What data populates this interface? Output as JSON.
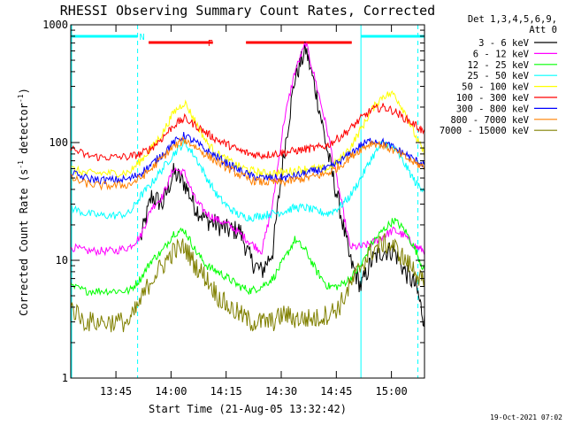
{
  "chart_data": {
    "type": "line",
    "title": "RHESSI Observing Summary Count Rates, Corrected",
    "xlabel": "Start Time (21-Aug-05 13:32:42)",
    "ylabel": "Corrected Count Rate (s",
    "ylabel_sup1": "-1",
    "ylabel_mid": " detector",
    "ylabel_sup2": "-1",
    "ylabel_end": ")",
    "x_unit": "minutes since 13:32:42",
    "xlim": [
      0,
      96.3
    ],
    "ylim": [
      1,
      1000
    ],
    "yscale": "log",
    "x_ticks": [
      {
        "label": "13:45",
        "value": 12.3
      },
      {
        "label": "14:00",
        "value": 27.3
      },
      {
        "label": "14:15",
        "value": 42.3
      },
      {
        "label": "14:30",
        "value": 57.3
      },
      {
        "label": "14:45",
        "value": 72.3
      },
      {
        "label": "15:00",
        "value": 87.3
      }
    ],
    "y_ticks": [
      {
        "label": "1",
        "value": 1
      },
      {
        "label": "10",
        "value": 10
      },
      {
        "label": "100",
        "value": 100
      },
      {
        "label": "1000",
        "value": 1000
      }
    ],
    "legend_header": [
      "Det 1,3,4,5,6,9,",
      "Att 0"
    ],
    "x": [
      0,
      4,
      8,
      12,
      16,
      19,
      22,
      25,
      28,
      31,
      34,
      37,
      40,
      43,
      46,
      49,
      52,
      55,
      58,
      61,
      64,
      67,
      70,
      73,
      76,
      79,
      82,
      85,
      88,
      91,
      94,
      96.3
    ],
    "series": [
      {
        "name": "3 - 6 keV",
        "color": "#000000",
        "values": [
          null,
          null,
          null,
          null,
          null,
          15,
          35,
          30,
          55,
          45,
          28,
          22,
          20,
          18,
          18,
          10,
          8,
          12,
          80,
          350,
          620,
          250,
          80,
          30,
          10,
          6,
          10,
          12,
          12,
          8,
          6,
          3
        ]
      },
      {
        "name": "6 - 12 keV",
        "color": "#ff00ff",
        "values": [
          13,
          12,
          12,
          12,
          13,
          16,
          28,
          35,
          60,
          55,
          32,
          25,
          22,
          20,
          17,
          14,
          12,
          30,
          150,
          400,
          700,
          300,
          120,
          40,
          13,
          13,
          14,
          16,
          18,
          16,
          13,
          12
        ]
      },
      {
        "name": "12 - 25 keV",
        "color": "#00ff00",
        "values": [
          6,
          5.5,
          5.5,
          5.5,
          5.5,
          7,
          10,
          12,
          17,
          18,
          12,
          9,
          8,
          7,
          6,
          5.5,
          6,
          7,
          10,
          15,
          12,
          8,
          6,
          6,
          7,
          9,
          14,
          18,
          22,
          18,
          12,
          8
        ]
      },
      {
        "name": "25 - 50 keV",
        "color": "#00ffff",
        "values": [
          28,
          25,
          24,
          24,
          25,
          35,
          45,
          60,
          80,
          100,
          75,
          50,
          35,
          28,
          24,
          23,
          24,
          25,
          26,
          28,
          28,
          26,
          25,
          28,
          35,
          50,
          75,
          100,
          90,
          65,
          45,
          40
        ]
      },
      {
        "name": "50 - 100 keV",
        "color": "#ffff00",
        "values": [
          60,
          55,
          55,
          55,
          56,
          70,
          90,
          120,
          180,
          220,
          150,
          100,
          80,
          70,
          62,
          58,
          55,
          55,
          56,
          58,
          60,
          60,
          60,
          70,
          90,
          130,
          190,
          250,
          260,
          180,
          110,
          80
        ]
      },
      {
        "name": "100 - 300 keV",
        "color": "#ff0000",
        "values": [
          90,
          78,
          75,
          75,
          76,
          80,
          90,
          110,
          140,
          160,
          140,
          120,
          105,
          95,
          85,
          80,
          78,
          80,
          82,
          85,
          88,
          90,
          95,
          110,
          130,
          160,
          190,
          200,
          185,
          160,
          140,
          120
        ]
      },
      {
        "name": "300 - 800 keV",
        "color": "#0000ff",
        "values": [
          55,
          50,
          48,
          48,
          49,
          55,
          65,
          80,
          100,
          115,
          100,
          85,
          75,
          65,
          58,
          52,
          50,
          50,
          50,
          52,
          55,
          58,
          60,
          68,
          80,
          95,
          105,
          100,
          90,
          80,
          70,
          65
        ]
      },
      {
        "name": "800 - 7000 keV",
        "color": "#ff8000",
        "values": [
          50,
          45,
          43,
          43,
          44,
          50,
          60,
          75,
          92,
          105,
          92,
          78,
          68,
          60,
          53,
          48,
          46,
          46,
          46,
          48,
          50,
          52,
          55,
          62,
          75,
          88,
          100,
          95,
          85,
          75,
          66,
          62
        ]
      },
      {
        "name": "7000 - 15000 keV",
        "color": "#808000",
        "values": [
          4,
          3,
          3,
          3,
          3,
          4.5,
          7,
          9,
          12,
          13,
          9,
          7,
          5,
          4,
          3.5,
          3,
          3,
          3,
          3.5,
          3.2,
          3.2,
          3.2,
          3.5,
          4,
          6,
          9,
          12,
          14,
          13,
          10,
          8,
          6
        ]
      }
    ],
    "flags": [
      {
        "label": "N",
        "color": "#00ffff",
        "segments": [
          [
            0,
            18.2
          ],
          [
            79,
            96.3
          ]
        ]
      },
      {
        "label": "F",
        "color": "#ff0000",
        "segments": [
          [
            21.2,
            38.7
          ],
          [
            47.7,
            76.5
          ]
        ]
      }
    ],
    "markers": [
      {
        "name": "attenuator boundary",
        "type": "solid",
        "color": "#00ffff",
        "x": 79
      },
      {
        "name": "saa boundary",
        "type": "dashed",
        "color": "#00ffff",
        "x": 18.2
      },
      {
        "name": "saa boundary",
        "type": "dashed",
        "color": "#00ffff",
        "x": 94.5
      }
    ],
    "timestamp": "19-Oct-2021 07:02"
  }
}
